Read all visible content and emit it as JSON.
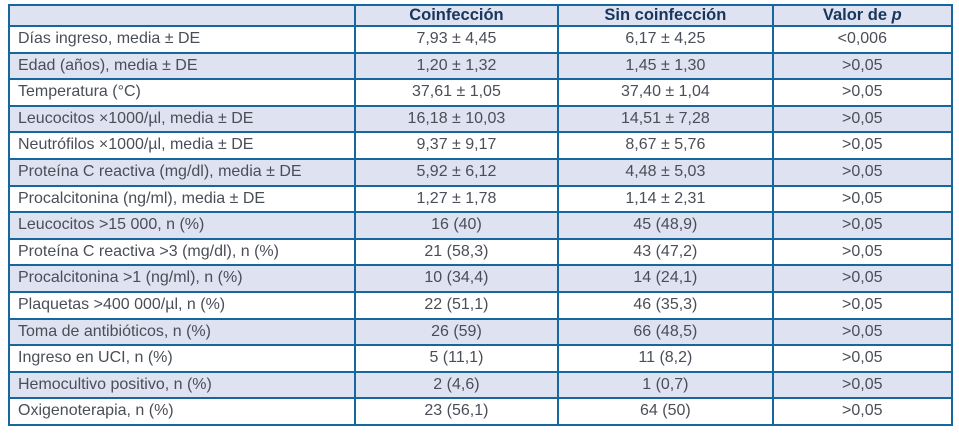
{
  "colors": {
    "border_blue": "#15679e",
    "row_alt_lavender": "#dee2f1",
    "header_text_navy": "#17365d",
    "body_text_gray": "#4a4e57"
  },
  "table": {
    "header": {
      "col_label": "",
      "col_coinfeccion": "Coinfección",
      "col_sin_coinfeccion": "Sin coinfección",
      "col_p_prefix": "Valor de ",
      "col_p_italic": "p"
    },
    "rows": [
      {
        "label": "Días ingreso, media ± DE",
        "coinfeccion": "7,93 ± 4,45",
        "sin_coinfeccion": "6,17 ± 4,25",
        "p": "<0,006"
      },
      {
        "label": "Edad (años), media ± DE",
        "coinfeccion": "1,20 ± 1,32",
        "sin_coinfeccion": "1,45 ± 1,30",
        "p": ">0,05"
      },
      {
        "label": "Temperatura (°C)",
        "coinfeccion": "37,61 ± 1,05",
        "sin_coinfeccion": "37,40 ± 1,04",
        "p": ">0,05"
      },
      {
        "label": "Leucocitos ×1000/µl, media ± DE",
        "coinfeccion": "16,18 ± 10,03",
        "sin_coinfeccion": "14,51 ± 7,28",
        "p": ">0,05"
      },
      {
        "label": "Neutrófilos ×1000/µl, media ± DE",
        "coinfeccion": "9,37 ± 9,17",
        "sin_coinfeccion": "8,67 ± 5,76",
        "p": ">0,05"
      },
      {
        "label": "Proteína C reactiva (mg/dl), media ± DE",
        "coinfeccion": "5,92 ± 6,12",
        "sin_coinfeccion": "4,48 ± 5,03",
        "p": ">0,05"
      },
      {
        "label": "Procalcitonina (ng/ml), media ± DE",
        "coinfeccion": "1,27 ± 1,78",
        "sin_coinfeccion": "1,14 ± 2,31",
        "p": ">0,05"
      },
      {
        "label": "Leucocitos >15 000, n (%)",
        "coinfeccion": "16 (40)",
        "sin_coinfeccion": "45 (48,9)",
        "p": ">0,05"
      },
      {
        "label": "Proteína C reactiva >3 (mg/dl), n (%)",
        "coinfeccion": "21 (58,3)",
        "sin_coinfeccion": "43 (47,2)",
        "p": ">0,05"
      },
      {
        "label": "Procalcitonina >1 (ng/ml), n (%)",
        "coinfeccion": "10 (34,4)",
        "sin_coinfeccion": "14 (24,1)",
        "p": ">0,05"
      },
      {
        "label": "Plaquetas >400 000/µl, n (%)",
        "coinfeccion": "22 (51,1)",
        "sin_coinfeccion": "46 (35,3)",
        "p": ">0,05"
      },
      {
        "label": "Toma de antibióticos, n (%)",
        "coinfeccion": "26 (59)",
        "sin_coinfeccion": "66 (48,5)",
        "p": ">0,05"
      },
      {
        "label": "Ingreso en UCI, n (%)",
        "coinfeccion": "5 (11,1)",
        "sin_coinfeccion": "11 (8,2)",
        "p": ">0,05"
      },
      {
        "label": "Hemocultivo positivo, n (%)",
        "coinfeccion": "2 (4,6)",
        "sin_coinfeccion": "1 (0,7)",
        "p": ">0,05"
      },
      {
        "label": "Oxigenoterapia, n (%)",
        "coinfeccion": "23 (56,1)",
        "sin_coinfeccion": "64 (50)",
        "p": ">0,05"
      }
    ]
  }
}
